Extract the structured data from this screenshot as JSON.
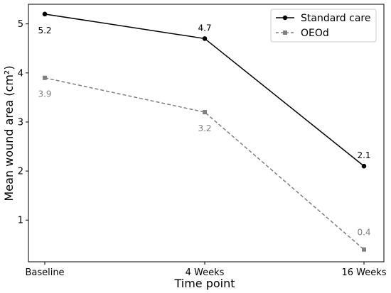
{
  "chart_data": {
    "type": "line",
    "categories": [
      "Baseline",
      "4 Weeks",
      "16 Weeks"
    ],
    "xlabel": "Time point",
    "ylabel": "Mean wound area (cm²)",
    "ylim": [
      0.15,
      5.4
    ],
    "yticks": [
      "1",
      "2",
      "3",
      "4",
      "5"
    ],
    "grid": false,
    "legend_position": "top-right",
    "series": [
      {
        "name": "Standard care",
        "values": [
          5.2,
          4.7,
          2.1
        ],
        "labels": [
          "5.2",
          "4.7",
          "2.1"
        ],
        "color": "#000000",
        "line_style": "solid",
        "marker": "circle"
      },
      {
        "name": "OEOd",
        "values": [
          3.9,
          3.2,
          0.4
        ],
        "labels": [
          "3.9",
          "3.2",
          "0.4"
        ],
        "color": "#808080",
        "line_style": "dashed",
        "marker": "square"
      }
    ]
  }
}
